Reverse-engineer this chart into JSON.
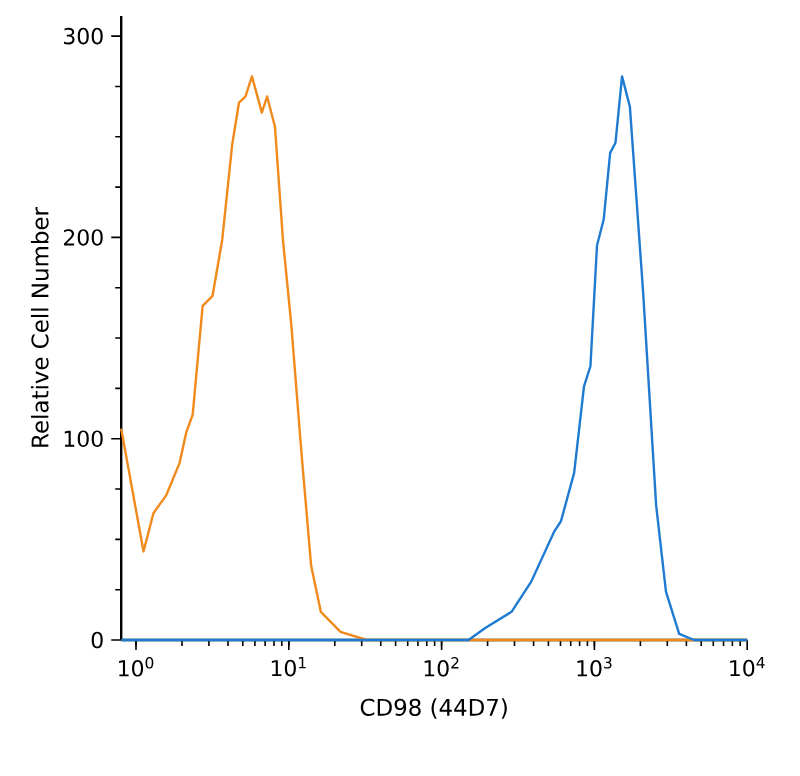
{
  "chart_data": {
    "type": "line",
    "xlabel": "CD98 (44D7)",
    "ylabel": "Relative Cell Number",
    "log": "x",
    "xlim": [
      0.8,
      10000
    ],
    "ylim": [
      0,
      310
    ],
    "xticks": [
      {
        "value": 1,
        "label": "10$^{0}$"
      },
      {
        "value": 10,
        "label": "10$^{1}$"
      },
      {
        "value": 100,
        "label": "10$^{2}$"
      },
      {
        "value": 1000,
        "label": "10$^{3}$"
      },
      {
        "value": 10000,
        "label": "10$^{4}$"
      }
    ],
    "yticks": [
      0,
      100,
      200,
      300
    ],
    "series": [
      {
        "color": "#f08a1c",
        "x": [
          0.8,
          1.12,
          1.3,
          1.58,
          1.93,
          2.13,
          2.35,
          2.73,
          3.17,
          3.67,
          4.26,
          4.72,
          5.2,
          5.74,
          6.66,
          7.21,
          8.12,
          9.15,
          10.4,
          12.1,
          14,
          16.2,
          21.8,
          32.5,
          10000
        ],
        "values": [
          105,
          44,
          63,
          72,
          88,
          103,
          112,
          166,
          171,
          199,
          246,
          267,
          270,
          280,
          262,
          270,
          255,
          199,
          156,
          93,
          37,
          14,
          4,
          0,
          0
        ]
      },
      {
        "color": "#1f7bd1",
        "x": [
          0.8,
          150,
          193,
          287,
          386,
          547,
          604,
          737,
          855,
          942,
          1040,
          1151,
          1268,
          1374,
          1517,
          1707,
          2083,
          2535,
          2940,
          3589,
          4500,
          10000
        ],
        "values": [
          0,
          0,
          6,
          14,
          29,
          54,
          59,
          83,
          126,
          136,
          196,
          209,
          242,
          247,
          280,
          265,
          173,
          67,
          24,
          3,
          0,
          0
        ]
      }
    ]
  }
}
